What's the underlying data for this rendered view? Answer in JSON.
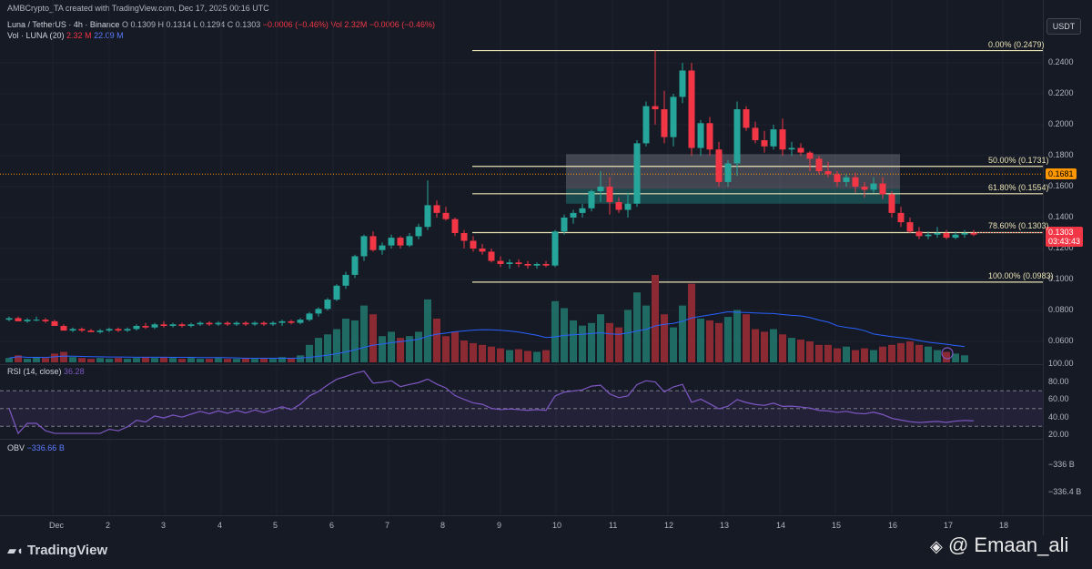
{
  "header": {
    "created": "AMBCrypto_TA created with TradingView.com, Dec 17, 2025 00:16 UTC",
    "symbol": "Luna / TetherUS · 4h · Binance",
    "o": "O 0.1309",
    "h": "H 0.1314",
    "l": "L 0.1294",
    "c": "C 0.1303",
    "chg": "−0.0006 (−0.46%)",
    "vol_inline": "Vol 2.32M",
    "vol_chg": "−0.0006 (−0.46%)",
    "vol_label": "Vol · LUNA (20)",
    "vol_value": "2.32 M",
    "vol_ma": "22.09 M"
  },
  "currency": "USDT",
  "price_scale": [
    "0.2400",
    "0.2200",
    "0.2000",
    "0.1800",
    "0.1600",
    "0.1400",
    "0.1200",
    "0.1000",
    "0.0800",
    "0.0600"
  ],
  "price_tags": {
    "orange": "0.1681",
    "current": "0.1303",
    "countdown": "03:43:43"
  },
  "fib": [
    {
      "label": "0.00% (0.2479)",
      "price": 0.2479
    },
    {
      "label": "50.00% (0.1731)",
      "price": 0.1731
    },
    {
      "label": "61.80% (0.1554)",
      "price": 0.1554
    },
    {
      "label": "78.60% (0.1303)",
      "price": 0.1303
    },
    {
      "label": "100.00% (0.0983)",
      "price": 0.0983
    }
  ],
  "rsi": {
    "label": "RSI (14, close)",
    "value": "36.28",
    "scale": [
      "100.00",
      "80.00",
      "60.00",
      "40.00",
      "20.00"
    ]
  },
  "obv": {
    "label": "OBV",
    "value": "−336.66 B",
    "scale": [
      "−336 B",
      "−336.4 B"
    ]
  },
  "x_labels": [
    "Dec",
    "2",
    "3",
    "4",
    "5",
    "6",
    "7",
    "8",
    "9",
    "10",
    "11",
    "12",
    "13",
    "14",
    "15",
    "16",
    "17",
    "18"
  ],
  "footer": {
    "logo": "TradingView",
    "watermark": "@ Emaan_ali"
  },
  "colors": {
    "up": "#26a69a",
    "down": "#f23645",
    "rsi": "#7e57c2",
    "obv": "#2962ff",
    "fib": "#e8e2b4"
  },
  "chart_data": {
    "type": "candlestick",
    "symbol": "Luna / TetherUS",
    "timeframe": "4h",
    "exchange": "Binance",
    "ylim": [
      0.045,
      0.26
    ],
    "candles": [
      [
        0.074,
        0.076,
        0.073,
        0.075
      ],
      [
        0.075,
        0.076,
        0.073,
        0.073
      ],
      [
        0.073,
        0.075,
        0.072,
        0.074
      ],
      [
        0.074,
        0.076,
        0.073,
        0.074
      ],
      [
        0.074,
        0.075,
        0.072,
        0.073
      ],
      [
        0.073,
        0.074,
        0.07,
        0.07
      ],
      [
        0.07,
        0.071,
        0.067,
        0.067
      ],
      [
        0.067,
        0.069,
        0.066,
        0.068
      ],
      [
        0.068,
        0.069,
        0.066,
        0.067
      ],
      [
        0.067,
        0.068,
        0.066,
        0.066
      ],
      [
        0.066,
        0.068,
        0.065,
        0.067
      ],
      [
        0.067,
        0.069,
        0.066,
        0.068
      ],
      [
        0.068,
        0.069,
        0.066,
        0.067
      ],
      [
        0.067,
        0.069,
        0.066,
        0.068
      ],
      [
        0.068,
        0.071,
        0.067,
        0.07
      ],
      [
        0.07,
        0.072,
        0.068,
        0.069
      ],
      [
        0.069,
        0.072,
        0.068,
        0.071
      ],
      [
        0.071,
        0.073,
        0.069,
        0.07
      ],
      [
        0.07,
        0.072,
        0.069,
        0.071
      ],
      [
        0.071,
        0.072,
        0.069,
        0.07
      ],
      [
        0.07,
        0.072,
        0.069,
        0.071
      ],
      [
        0.071,
        0.073,
        0.07,
        0.072
      ],
      [
        0.072,
        0.073,
        0.07,
        0.071
      ],
      [
        0.071,
        0.073,
        0.07,
        0.072
      ],
      [
        0.072,
        0.073,
        0.07,
        0.071
      ],
      [
        0.071,
        0.073,
        0.07,
        0.072
      ],
      [
        0.072,
        0.073,
        0.07,
        0.071
      ],
      [
        0.071,
        0.073,
        0.07,
        0.072
      ],
      [
        0.072,
        0.073,
        0.07,
        0.071
      ],
      [
        0.071,
        0.073,
        0.07,
        0.072
      ],
      [
        0.072,
        0.074,
        0.07,
        0.073
      ],
      [
        0.073,
        0.074,
        0.071,
        0.072
      ],
      [
        0.072,
        0.075,
        0.071,
        0.074
      ],
      [
        0.074,
        0.079,
        0.073,
        0.078
      ],
      [
        0.078,
        0.082,
        0.076,
        0.081
      ],
      [
        0.081,
        0.088,
        0.08,
        0.087
      ],
      [
        0.087,
        0.097,
        0.086,
        0.096
      ],
      [
        0.096,
        0.105,
        0.094,
        0.103
      ],
      [
        0.103,
        0.116,
        0.101,
        0.115
      ],
      [
        0.115,
        0.129,
        0.112,
        0.128
      ],
      [
        0.128,
        0.131,
        0.118,
        0.119
      ],
      [
        0.119,
        0.124,
        0.116,
        0.122
      ],
      [
        0.122,
        0.129,
        0.12,
        0.127
      ],
      [
        0.127,
        0.128,
        0.12,
        0.122
      ],
      [
        0.122,
        0.13,
        0.121,
        0.128
      ],
      [
        0.128,
        0.136,
        0.126,
        0.134
      ],
      [
        0.134,
        0.164,
        0.132,
        0.148
      ],
      [
        0.148,
        0.151,
        0.14,
        0.143
      ],
      [
        0.143,
        0.147,
        0.138,
        0.139
      ],
      [
        0.139,
        0.14,
        0.128,
        0.13
      ],
      [
        0.13,
        0.132,
        0.12,
        0.125
      ],
      [
        0.125,
        0.128,
        0.118,
        0.12
      ],
      [
        0.12,
        0.123,
        0.116,
        0.118
      ],
      [
        0.118,
        0.12,
        0.111,
        0.112
      ],
      [
        0.112,
        0.115,
        0.108,
        0.11
      ],
      [
        0.11,
        0.113,
        0.107,
        0.111
      ],
      [
        0.111,
        0.113,
        0.108,
        0.11
      ],
      [
        0.11,
        0.112,
        0.107,
        0.109
      ],
      [
        0.109,
        0.111,
        0.107,
        0.11
      ],
      [
        0.11,
        0.112,
        0.108,
        0.109
      ],
      [
        0.109,
        0.132,
        0.108,
        0.131
      ],
      [
        0.131,
        0.142,
        0.129,
        0.14
      ],
      [
        0.14,
        0.145,
        0.136,
        0.143
      ],
      [
        0.143,
        0.149,
        0.14,
        0.146
      ],
      [
        0.146,
        0.158,
        0.144,
        0.157
      ],
      [
        0.157,
        0.17,
        0.15,
        0.16
      ],
      [
        0.16,
        0.166,
        0.142,
        0.15
      ],
      [
        0.15,
        0.153,
        0.143,
        0.145
      ],
      [
        0.145,
        0.156,
        0.14,
        0.149
      ],
      [
        0.149,
        0.19,
        0.147,
        0.188
      ],
      [
        0.188,
        0.215,
        0.186,
        0.212
      ],
      [
        0.212,
        0.248,
        0.2,
        0.21
      ],
      [
        0.21,
        0.222,
        0.188,
        0.192
      ],
      [
        0.192,
        0.22,
        0.186,
        0.218
      ],
      [
        0.218,
        0.24,
        0.214,
        0.235
      ],
      [
        0.235,
        0.24,
        0.18,
        0.185
      ],
      [
        0.185,
        0.203,
        0.18,
        0.201
      ],
      [
        0.201,
        0.205,
        0.18,
        0.184
      ],
      [
        0.184,
        0.189,
        0.16,
        0.163
      ],
      [
        0.163,
        0.177,
        0.16,
        0.175
      ],
      [
        0.175,
        0.215,
        0.167,
        0.21
      ],
      [
        0.21,
        0.212,
        0.196,
        0.198
      ],
      [
        0.198,
        0.202,
        0.188,
        0.19
      ],
      [
        0.19,
        0.196,
        0.182,
        0.186
      ],
      [
        0.186,
        0.2,
        0.184,
        0.197
      ],
      [
        0.197,
        0.204,
        0.18,
        0.184
      ],
      [
        0.184,
        0.189,
        0.18,
        0.185
      ],
      [
        0.185,
        0.188,
        0.18,
        0.182
      ],
      [
        0.182,
        0.183,
        0.17,
        0.178
      ],
      [
        0.178,
        0.18,
        0.168,
        0.17
      ],
      [
        0.17,
        0.176,
        0.166,
        0.168
      ],
      [
        0.168,
        0.17,
        0.16,
        0.163
      ],
      [
        0.163,
        0.168,
        0.16,
        0.166
      ],
      [
        0.166,
        0.169,
        0.156,
        0.16
      ],
      [
        0.16,
        0.163,
        0.153,
        0.158
      ],
      [
        0.158,
        0.166,
        0.156,
        0.162
      ],
      [
        0.162,
        0.166,
        0.152,
        0.155
      ],
      [
        0.155,
        0.157,
        0.14,
        0.143
      ],
      [
        0.143,
        0.147,
        0.134,
        0.137
      ],
      [
        0.137,
        0.14,
        0.13,
        0.131
      ],
      [
        0.131,
        0.134,
        0.126,
        0.128
      ],
      [
        0.128,
        0.131,
        0.126,
        0.129
      ],
      [
        0.129,
        0.134,
        0.127,
        0.13
      ],
      [
        0.13,
        0.132,
        0.126,
        0.127
      ],
      [
        0.127,
        0.131,
        0.126,
        0.129
      ],
      [
        0.129,
        0.132,
        0.127,
        0.13
      ],
      [
        0.13,
        0.132,
        0.128,
        0.129
      ]
    ],
    "volume": [
      0.05,
      0.08,
      0.04,
      0.06,
      0.05,
      0.1,
      0.12,
      0.06,
      0.05,
      0.04,
      0.05,
      0.04,
      0.05,
      0.04,
      0.05,
      0.06,
      0.05,
      0.06,
      0.05,
      0.04,
      0.05,
      0.04,
      0.04,
      0.05,
      0.04,
      0.04,
      0.05,
      0.04,
      0.05,
      0.04,
      0.06,
      0.05,
      0.08,
      0.2,
      0.28,
      0.32,
      0.38,
      0.5,
      0.48,
      0.65,
      0.55,
      0.3,
      0.35,
      0.28,
      0.3,
      0.35,
      0.72,
      0.5,
      0.3,
      0.35,
      0.25,
      0.22,
      0.2,
      0.18,
      0.16,
      0.14,
      0.15,
      0.13,
      0.12,
      0.14,
      0.7,
      0.62,
      0.48,
      0.42,
      0.45,
      0.55,
      0.45,
      0.4,
      0.6,
      0.8,
      0.65,
      1.0,
      0.55,
      0.4,
      0.65,
      0.9,
      0.5,
      0.48,
      0.45,
      0.52,
      0.6,
      0.55,
      0.38,
      0.35,
      0.38,
      0.32,
      0.28,
      0.26,
      0.24,
      0.2,
      0.2,
      0.16,
      0.18,
      0.14,
      0.16,
      0.14,
      0.18,
      0.2,
      0.22,
      0.24,
      0.2,
      0.18,
      0.14,
      0.12,
      0.1,
      0.08
    ],
    "rsi_ylim": [
      20,
      100
    ],
    "rsi_bands": [
      70,
      50,
      30
    ]
  }
}
